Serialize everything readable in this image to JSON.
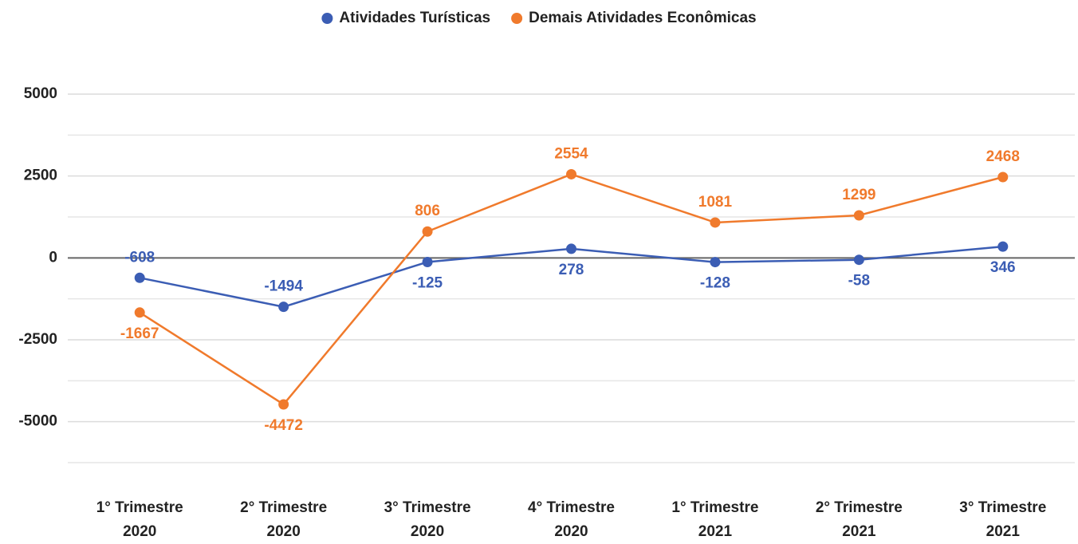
{
  "chart_data": {
    "type": "line",
    "categories": [
      "1° Trimestre 2020",
      "2° Trimestre 2020",
      "3° Trimestre 2020",
      "4° Trimestre 2020",
      "1° Trimestre 2021",
      "2° Trimestre 2021",
      "3° Trimestre 2021"
    ],
    "series": [
      {
        "name": "Atividades Turísticas",
        "color": "#3b5db4",
        "values": [
          -608,
          -1494,
          -125,
          278,
          -128,
          -58,
          346
        ]
      },
      {
        "name": "Demais Atividades Econômicas",
        "color": "#f07a2c",
        "values": [
          -1667,
          -4472,
          806,
          2554,
          1081,
          1299,
          2468
        ]
      }
    ],
    "ylim": [
      -6250,
      5000
    ],
    "yticks": [
      -5000,
      -2500,
      0,
      2500,
      5000
    ],
    "grid": true,
    "minor_grid": true,
    "legend": "top",
    "data_labels": true
  }
}
